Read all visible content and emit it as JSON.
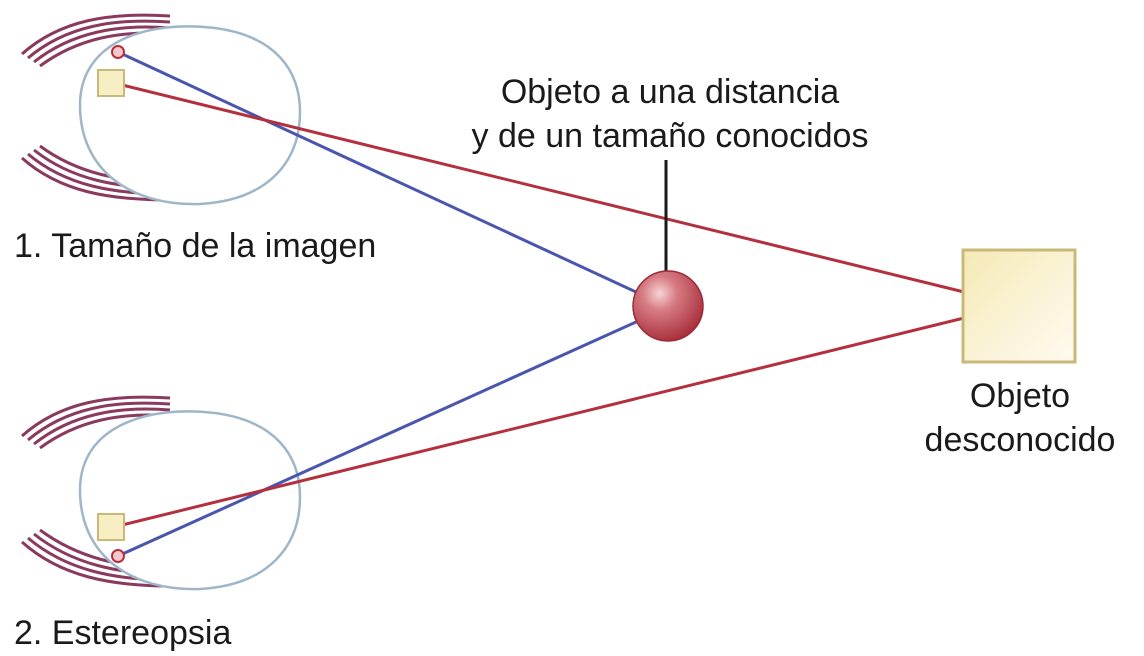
{
  "labels": {
    "eye1_caption": "1. Tamaño de la imagen",
    "eye2_caption": "2. Estereopsia",
    "known_object_line1": "Objeto a una distancia",
    "known_object_line2": "y de un tamaño conocidos",
    "unknown_object_line1": "Objeto",
    "unknown_object_line2": "desconocido"
  },
  "colors": {
    "red_ray": "#b3303f",
    "blue_ray": "#4a55b0",
    "eye_outline": "#9fb6c9",
    "lashes": "#8a3a5e",
    "square_fill": "#f7eec4",
    "square_stroke": "#c9b878",
    "sphere": "#c9505a",
    "pointer": "#1a1a1a"
  }
}
